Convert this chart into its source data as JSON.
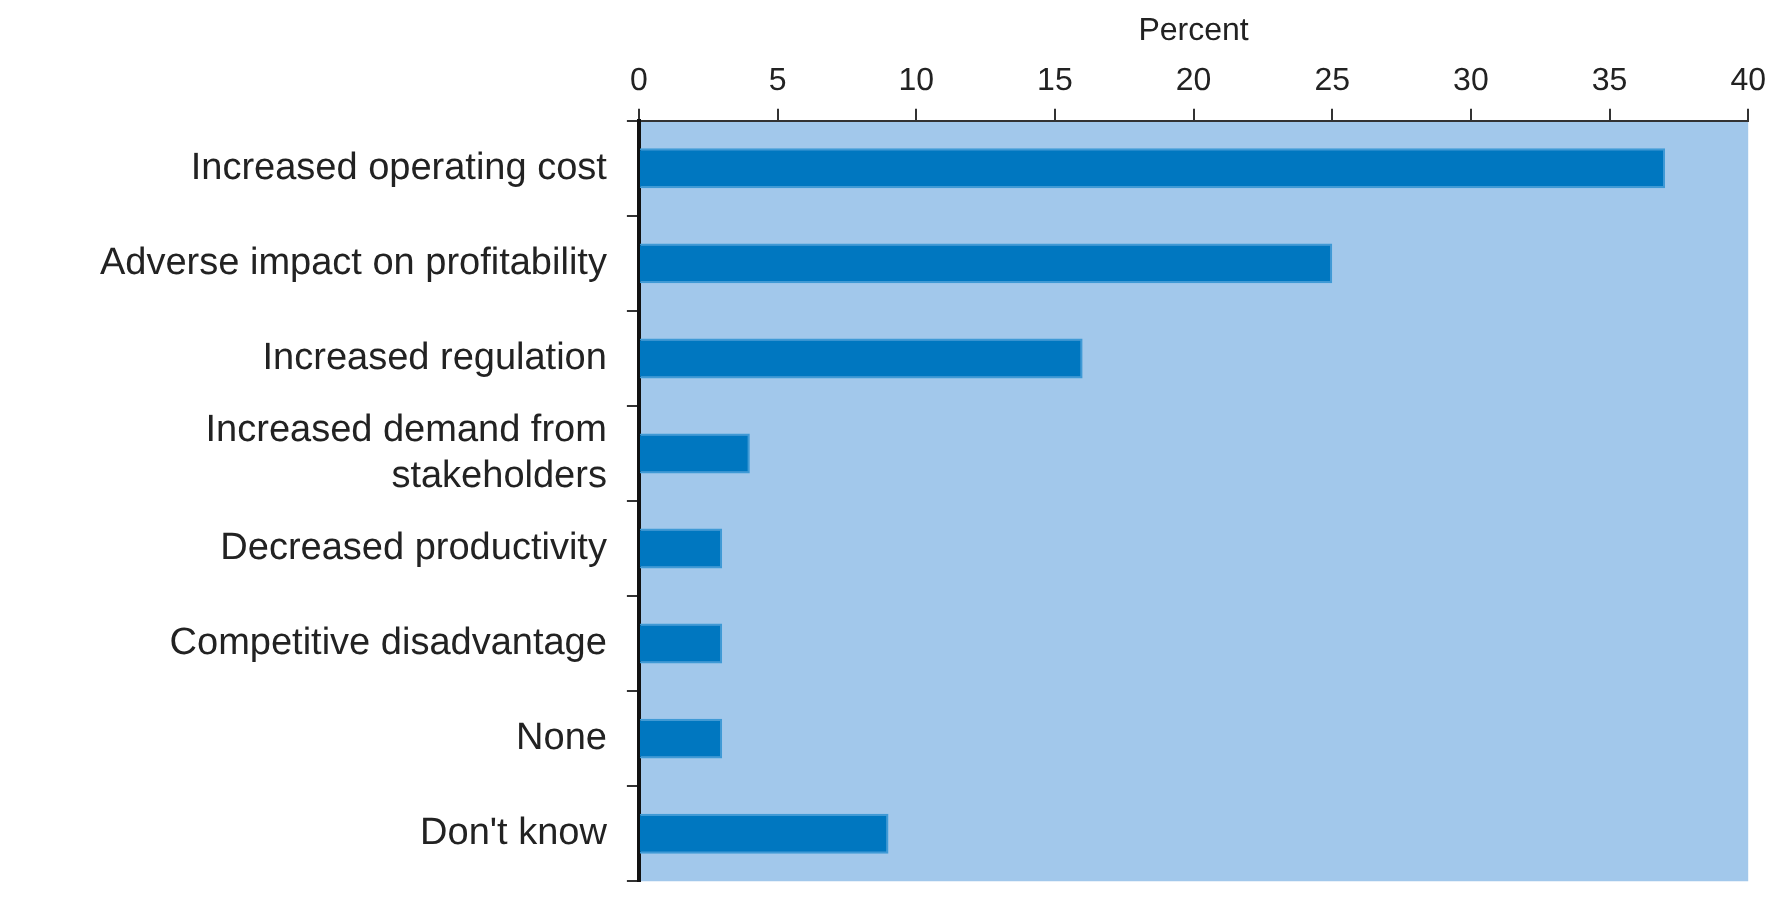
{
  "chart_data": {
    "type": "bar",
    "orientation": "horizontal",
    "xlabel": "Percent",
    "categories": [
      "Increased operating cost",
      "Adverse impact on profitability",
      "Increased regulation",
      "Increased demand from stakeholders",
      "Decreased productivity",
      "Competitive disadvantage",
      "None",
      "Don't know"
    ],
    "values": [
      37,
      25,
      16,
      4,
      3,
      3,
      3,
      9
    ],
    "color": "#0077c0",
    "xlim": [
      0,
      40
    ],
    "xticks": [
      0,
      5,
      10,
      15,
      20,
      25,
      30,
      35,
      40
    ],
    "grid": false,
    "legend": false
  }
}
